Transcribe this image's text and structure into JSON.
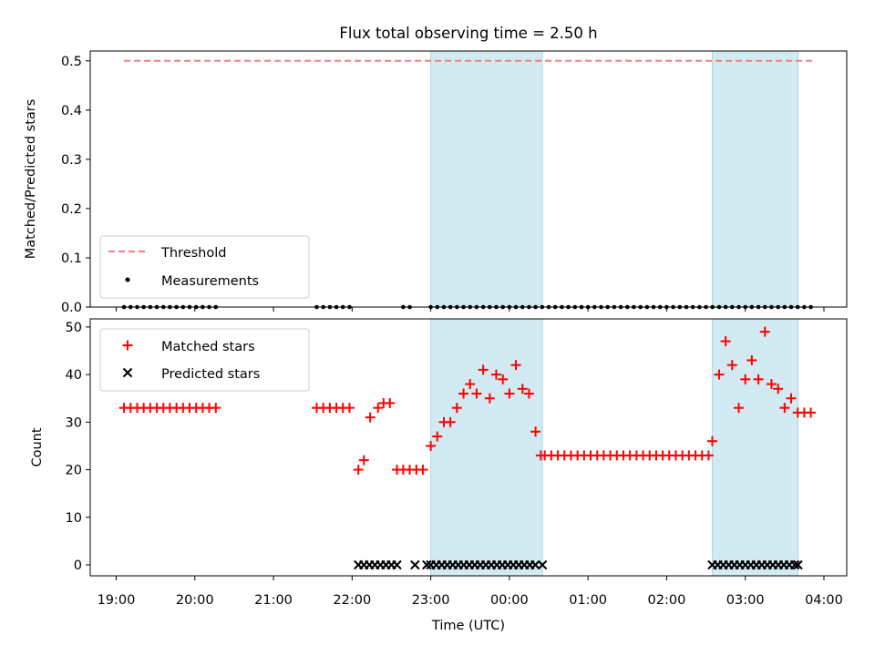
{
  "title": "Flux total observing time = 2.50 h",
  "colors": {
    "threshold": "#f08080",
    "matched": "#ff0000",
    "predicted": "#000000",
    "measurement": "#000000",
    "shade": "#add8e6"
  },
  "chart_data": [
    {
      "type": "scatter",
      "panel": "top",
      "ylabel": "Matched/Predicted stars",
      "ylim": [
        0,
        0.52
      ],
      "yticks": [
        "0.0",
        "0.1",
        "0.2",
        "0.3",
        "0.4",
        "0.5"
      ],
      "ytick_values": [
        0,
        0.1,
        0.2,
        0.3,
        0.4,
        0.5
      ],
      "threshold": {
        "value": 0.5,
        "x_start": 19.1,
        "x_end": 27.85
      },
      "legend": {
        "placement": "lower-left",
        "entries": [
          "Threshold",
          "Measurements"
        ]
      },
      "series": [
        {
          "name": "Measurements",
          "x": [
            19.1,
            19.183,
            19.267,
            19.35,
            19.433,
            19.517,
            19.6,
            19.683,
            19.767,
            19.85,
            19.933,
            20.017,
            20.1,
            20.183,
            20.267,
            21.55,
            21.633,
            21.717,
            21.8,
            21.883,
            21.967,
            22.65,
            22.733,
            23.0,
            23.083,
            23.167,
            23.25,
            23.333,
            23.417,
            23.5,
            23.583,
            23.667,
            23.75,
            23.833,
            23.917,
            24.0,
            24.083,
            24.167,
            24.25,
            24.333,
            24.417,
            24.5,
            24.583,
            24.667,
            24.75,
            24.833,
            24.917,
            25.0,
            25.083,
            25.167,
            25.25,
            25.333,
            25.417,
            25.5,
            25.583,
            25.667,
            25.75,
            25.833,
            25.917,
            26.0,
            26.083,
            26.167,
            26.25,
            26.333,
            26.417,
            26.5,
            26.583,
            26.667,
            26.75,
            26.833,
            26.917,
            27.0,
            27.083,
            27.167,
            27.25,
            27.333,
            27.417,
            27.5,
            27.583,
            27.667,
            27.75,
            27.833
          ],
          "y_constant": 0
        }
      ],
      "shaded_intervals": [
        [
          23.0,
          24.42
        ],
        [
          26.58,
          27.67
        ]
      ]
    },
    {
      "type": "scatter",
      "panel": "bottom",
      "ylabel": "Count",
      "xlabel": "Time (UTC)",
      "ylim": [
        -2.3,
        51.7
      ],
      "yticks": [
        "0",
        "10",
        "20",
        "30",
        "40",
        "50"
      ],
      "ytick_values": [
        0,
        10,
        20,
        30,
        40,
        50
      ],
      "xlim": [
        18.67,
        28.29
      ],
      "xticks": [
        "19:00",
        "20:00",
        "21:00",
        "22:00",
        "23:00",
        "00:00",
        "01:00",
        "02:00",
        "03:00",
        "04:00"
      ],
      "xtick_values": [
        19,
        20,
        21,
        22,
        23,
        24,
        25,
        26,
        27,
        28
      ],
      "legend": {
        "placement": "upper-left",
        "entries": [
          "Matched stars",
          "Predicted stars"
        ]
      },
      "shaded_intervals": [
        [
          23.0,
          24.42
        ],
        [
          26.58,
          27.67
        ]
      ],
      "series": [
        {
          "name": "Matched stars",
          "marker": "+",
          "x": [
            19.1,
            19.183,
            19.267,
            19.35,
            19.433,
            19.517,
            19.6,
            19.683,
            19.767,
            19.85,
            19.933,
            20.017,
            20.1,
            20.183,
            20.267,
            21.55,
            21.633,
            21.717,
            21.8,
            21.883,
            21.967,
            22.08,
            22.15,
            22.23,
            22.33,
            22.4,
            22.48,
            22.57,
            22.65,
            22.733,
            22.817,
            22.9,
            23.0,
            23.083,
            23.167,
            23.25,
            23.333,
            23.417,
            23.5,
            23.583,
            23.667,
            23.75,
            23.833,
            23.917,
            24.0,
            24.083,
            24.167,
            24.25,
            24.333,
            24.4,
            24.45,
            24.533,
            24.617,
            24.7,
            24.783,
            24.867,
            24.95,
            25.033,
            25.117,
            25.2,
            25.283,
            25.367,
            25.45,
            25.533,
            25.617,
            25.7,
            25.783,
            25.867,
            25.95,
            26.033,
            26.117,
            26.2,
            26.283,
            26.367,
            26.45,
            26.533,
            26.58,
            26.667,
            26.75,
            26.833,
            26.917,
            27.0,
            27.083,
            27.167,
            27.25,
            27.333,
            27.417,
            27.5,
            27.583,
            27.667,
            27.75,
            27.833
          ],
          "y": [
            33,
            33,
            33,
            33,
            33,
            33,
            33,
            33,
            33,
            33,
            33,
            33,
            33,
            33,
            33,
            33,
            33,
            33,
            33,
            33,
            33,
            20,
            22,
            31,
            33,
            34,
            34,
            20,
            20,
            20,
            20,
            20,
            25,
            27,
            30,
            30,
            33,
            36,
            38,
            36,
            41,
            35,
            40,
            39,
            36,
            42,
            37,
            36,
            28,
            23,
            23,
            23,
            23,
            23,
            23,
            23,
            23,
            23,
            23,
            23,
            23,
            23,
            23,
            23,
            23,
            23,
            23,
            23,
            23,
            23,
            23,
            23,
            23,
            23,
            23,
            23,
            26,
            40,
            47,
            42,
            33,
            39,
            43,
            39,
            49,
            38,
            37,
            33,
            35,
            32,
            32,
            32
          ]
        },
        {
          "name": "Predicted stars",
          "marker": "x",
          "x": [
            22.08,
            22.15,
            22.22,
            22.29,
            22.36,
            22.43,
            22.5,
            22.57,
            22.8,
            22.95,
            23.0,
            23.07,
            23.14,
            23.21,
            23.28,
            23.35,
            23.42,
            23.49,
            23.56,
            23.63,
            23.7,
            23.77,
            23.84,
            23.91,
            23.98,
            24.05,
            24.12,
            24.19,
            24.26,
            24.33,
            24.42,
            26.58,
            26.65,
            26.72,
            26.79,
            26.86,
            26.93,
            27.0,
            27.07,
            27.14,
            27.21,
            27.28,
            27.35,
            27.42,
            27.49,
            27.56,
            27.63,
            27.67
          ],
          "y_constant": 0
        }
      ]
    }
  ]
}
